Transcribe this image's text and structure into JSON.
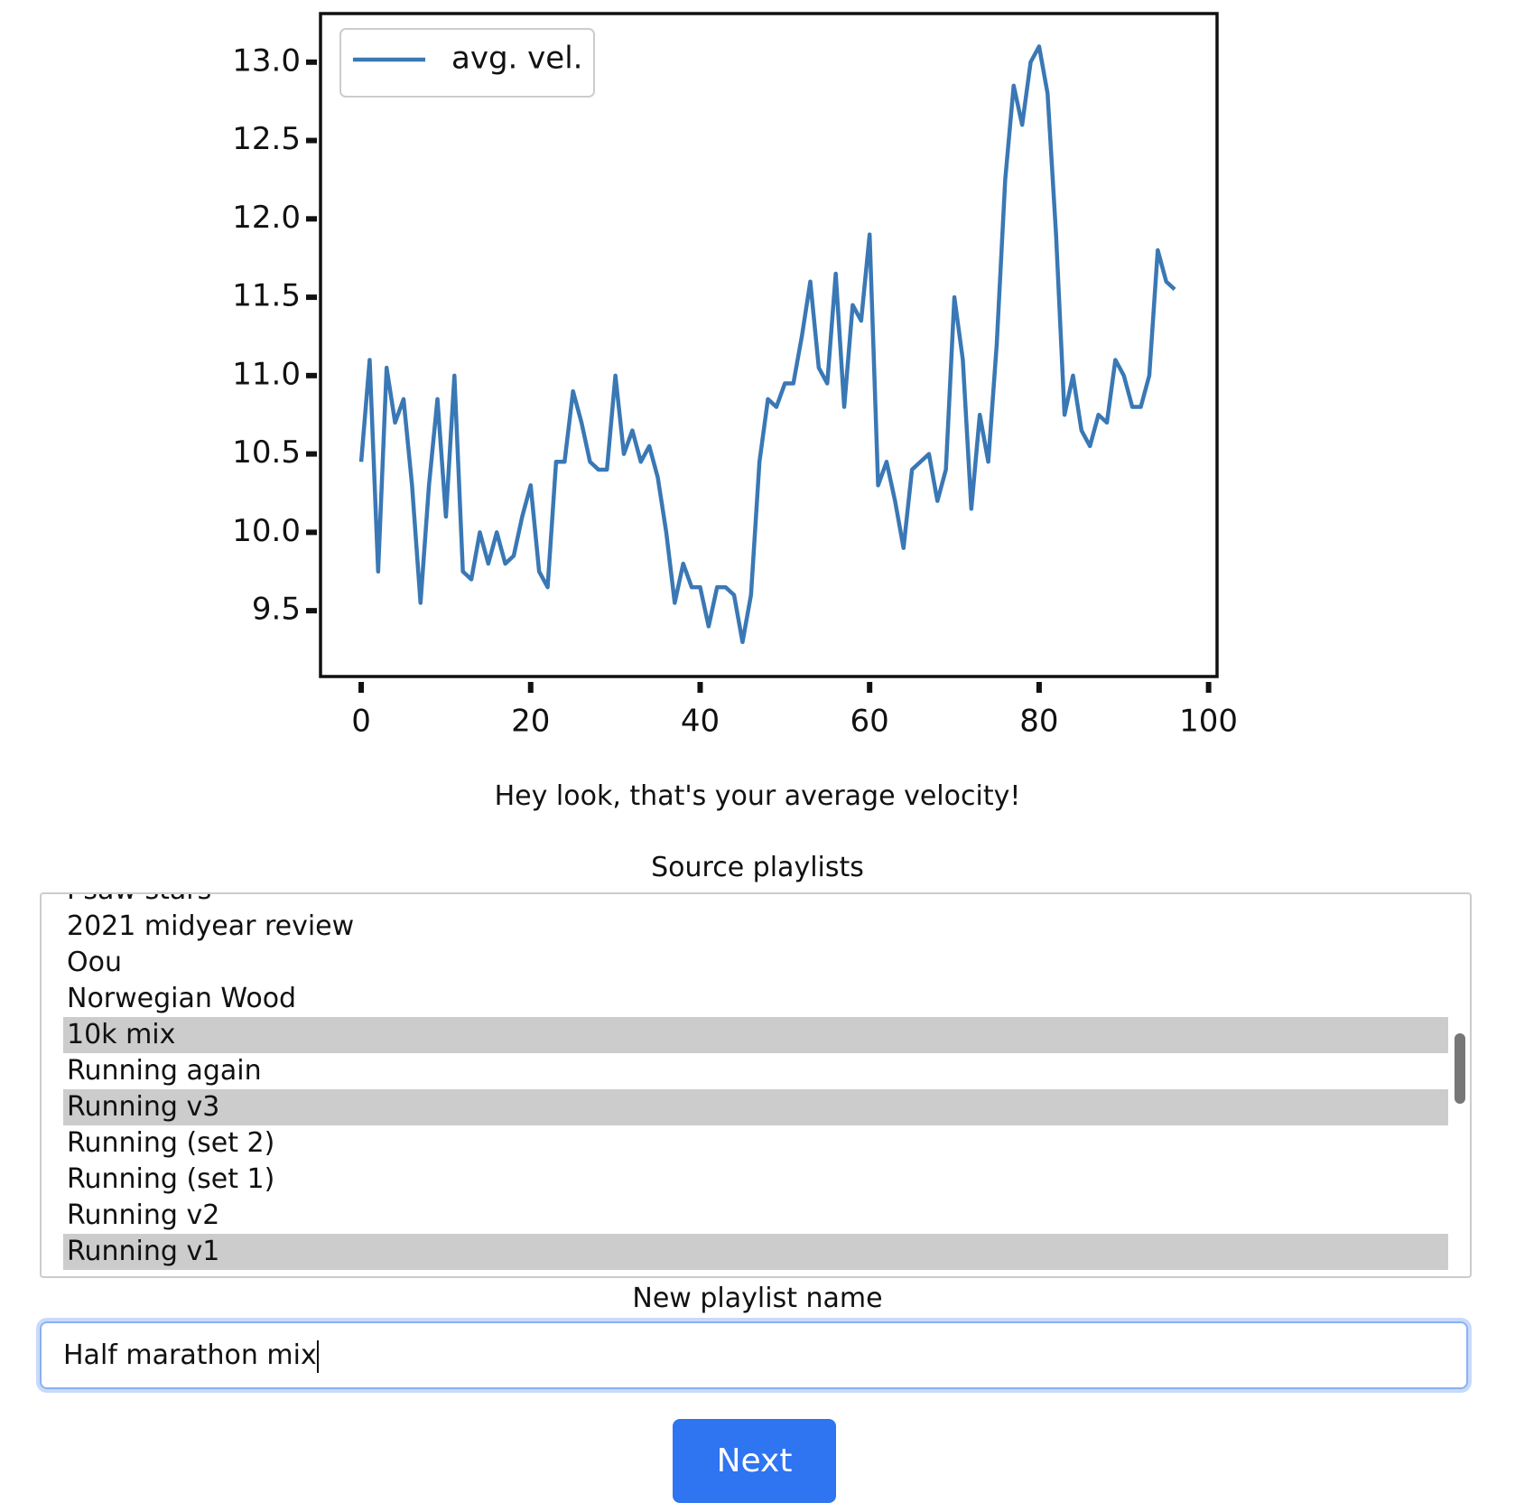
{
  "chart_data": {
    "type": "line",
    "x": [
      0,
      1,
      2,
      3,
      4,
      5,
      6,
      7,
      8,
      9,
      10,
      11,
      12,
      13,
      14,
      15,
      16,
      17,
      18,
      19,
      20,
      21,
      22,
      23,
      24,
      25,
      26,
      27,
      28,
      29,
      30,
      31,
      32,
      33,
      34,
      35,
      36,
      37,
      38,
      39,
      40,
      41,
      42,
      43,
      44,
      45,
      46,
      47,
      48,
      49,
      50,
      51,
      52,
      53,
      54,
      55,
      56,
      57,
      58,
      59,
      60,
      61,
      62,
      63,
      64,
      65,
      66,
      67,
      68,
      69,
      70,
      71,
      72,
      73,
      74,
      75,
      76,
      77,
      78,
      79,
      80,
      81,
      82,
      83,
      84,
      85,
      86,
      87,
      88,
      89,
      90,
      91,
      92,
      93,
      94,
      95,
      96
    ],
    "series": [
      {
        "name": "avg. vel.",
        "color": "#3a78b5",
        "values": [
          10.45,
          11.1,
          9.75,
          11.05,
          10.7,
          10.85,
          10.3,
          9.55,
          10.3,
          10.85,
          10.1,
          11.0,
          9.75,
          9.7,
          10.0,
          9.8,
          10.0,
          9.8,
          9.85,
          10.1,
          10.3,
          9.75,
          9.65,
          10.45,
          10.45,
          10.9,
          10.7,
          10.45,
          10.4,
          10.4,
          11.0,
          10.5,
          10.65,
          10.45,
          10.55,
          10.35,
          10.0,
          9.55,
          9.8,
          9.65,
          9.65,
          9.4,
          9.65,
          9.65,
          9.6,
          9.3,
          9.6,
          10.45,
          10.85,
          10.8,
          10.95,
          10.95,
          11.25,
          11.6,
          11.05,
          10.95,
          11.65,
          10.8,
          11.45,
          11.35,
          11.9,
          10.3,
          10.45,
          10.2,
          9.9,
          10.4,
          10.45,
          10.5,
          10.2,
          10.4,
          11.5,
          11.1,
          10.15,
          10.75,
          10.45,
          11.2,
          12.25,
          12.85,
          12.6,
          13.0,
          13.1,
          12.8,
          11.9,
          10.75,
          11.0,
          10.65,
          10.55,
          10.75,
          10.7,
          11.1,
          11.0,
          10.8,
          10.8,
          11.0,
          11.8,
          11.6,
          11.55
        ]
      }
    ],
    "xlim": [
      -4.8,
      101
    ],
    "ylim": [
      9.08,
      13.31
    ],
    "xticks": [
      0,
      20,
      40,
      60,
      80,
      100
    ],
    "yticks": [
      9.5,
      {
        "value": 10,
        "label": "10.0"
      },
      10.5,
      {
        "value": 11,
        "label": "11.0"
      },
      11.5,
      {
        "value": 12,
        "label": "12.0"
      },
      12.5,
      {
        "value": 13,
        "label": "13.0"
      }
    ],
    "legend": "upper left",
    "grid": false
  },
  "caption": "Hey look, that's your average velocity!",
  "playlists": {
    "label": "Source playlists",
    "items": [
      {
        "label": "I saw stars",
        "selected": false
      },
      {
        "label": "2021 midyear review",
        "selected": false
      },
      {
        "label": "Oou",
        "selected": false
      },
      {
        "label": "Norwegian Wood",
        "selected": false
      },
      {
        "label": "10k mix",
        "selected": true
      },
      {
        "label": "Running again",
        "selected": false
      },
      {
        "label": "Running v3",
        "selected": true
      },
      {
        "label": "Running (set 2)",
        "selected": false
      },
      {
        "label": "Running (set 1)",
        "selected": false
      },
      {
        "label": "Running v2",
        "selected": false
      },
      {
        "label": "Running v1",
        "selected": true
      }
    ]
  },
  "new_playlist": {
    "label": "New playlist name",
    "value": "Half marathon mix"
  },
  "button": "Next"
}
